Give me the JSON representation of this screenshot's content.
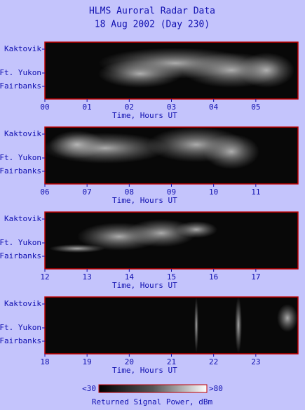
{
  "title": [
    "HLMS Auroral Radar Data",
    "18 Aug 2002 (Day 230)"
  ],
  "chart_data": [
    {
      "type": "heatmap",
      "xlabel": "Time, Hours UT",
      "y_categories": [
        "Kaktovik",
        "Ft. Yukon",
        "Fairbanks"
      ],
      "xlim": [
        0,
        6
      ],
      "xticks": [
        {
          "value": 0,
          "label": "00"
        },
        {
          "value": 1,
          "label": "01"
        },
        {
          "value": 2,
          "label": "02"
        },
        {
          "value": 3,
          "label": "03"
        },
        {
          "value": 4,
          "label": "04"
        },
        {
          "value": 5,
          "label": "05"
        }
      ]
    },
    {
      "type": "heatmap",
      "xlabel": "Time, Hours UT",
      "y_categories": [
        "Kaktovik",
        "Ft. Yukon",
        "Fairbanks"
      ],
      "xlim": [
        6,
        12
      ],
      "xticks": [
        {
          "value": 6,
          "label": "06"
        },
        {
          "value": 7,
          "label": "07"
        },
        {
          "value": 8,
          "label": "08"
        },
        {
          "value": 9,
          "label": "09"
        },
        10,
        11
      ]
    },
    {
      "type": "heatmap",
      "xlabel": "Time, Hours UT",
      "y_categories": [
        "Kaktovik",
        "Ft. Yukon",
        "Fairbanks"
      ],
      "xlim": [
        12,
        18
      ],
      "xticks": [
        12,
        13,
        14,
        15,
        16,
        17
      ]
    },
    {
      "type": "heatmap",
      "xlabel": "Time, Hours UT",
      "y_categories": [
        "Kaktovik",
        "Ft. Yukon",
        "Fairbanks"
      ],
      "xlim": [
        18,
        24
      ],
      "xticks": [
        18,
        19,
        20,
        21,
        22,
        23
      ]
    }
  ],
  "colorbar": {
    "min_label": "<30",
    "max_label": ">80",
    "label": "Returned Signal Power, dBm"
  }
}
